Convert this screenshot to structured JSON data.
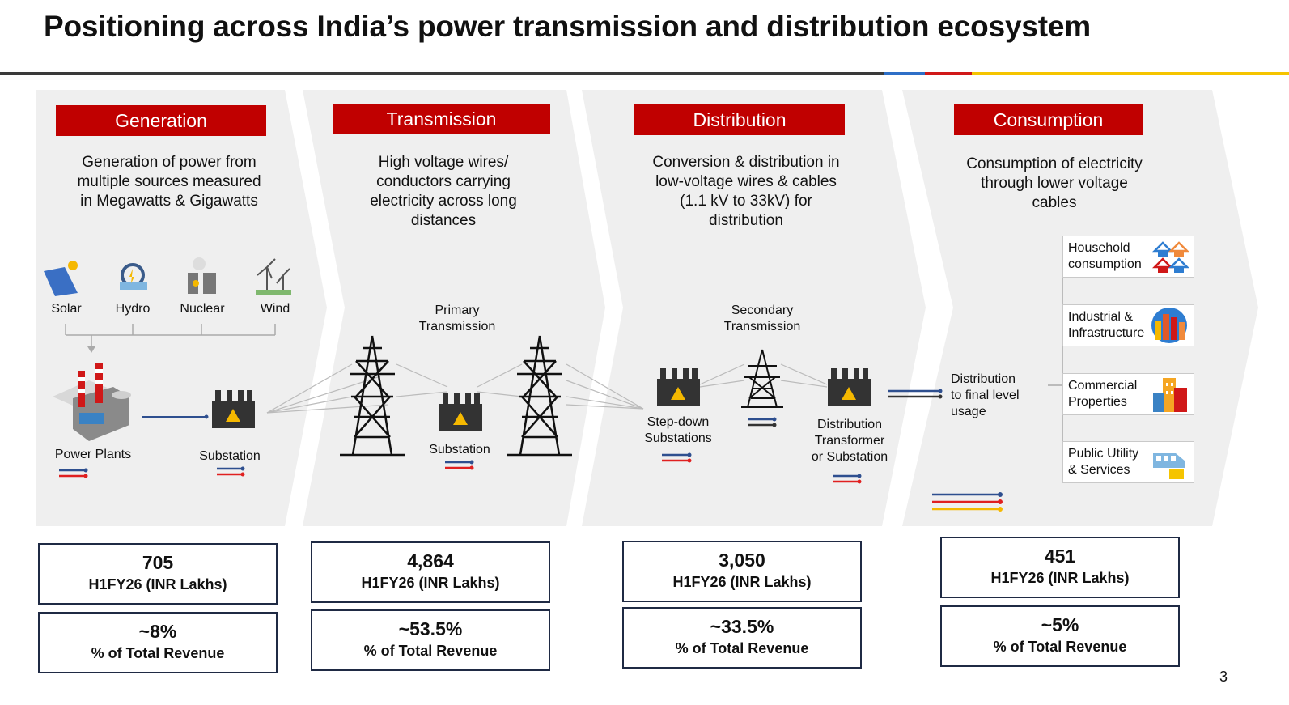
{
  "title": "Positioning across India’s power transmission and distribution ecosystem",
  "page_number": "3",
  "colors": {
    "accent_red": "#c00000",
    "line_blue": "#2e4f8f",
    "line_red": "#e02020",
    "line_yellow": "#f5b800",
    "panel_gray": "#efefef"
  },
  "stages": [
    {
      "name": "Generation",
      "description": [
        "Generation of power from",
        "multiple sources measured",
        "in Megawatts & Gigawatts"
      ],
      "sources": [
        "Solar",
        "Hydro",
        "Nuclear",
        "Wind"
      ],
      "labels": {
        "plants": "Power Plants",
        "substation": "Substation"
      },
      "revenue": "705",
      "revenue_unit": "H1FY26 (INR Lakhs)",
      "share": "~8%",
      "share_label": "% of Total Revenue"
    },
    {
      "name": "Transmission",
      "description": [
        "High voltage wires/",
        "conductors carrying",
        "electricity across long",
        "distances"
      ],
      "labels": {
        "primary": [
          "Primary",
          "Transmission"
        ],
        "substation": "Substation"
      },
      "revenue": "4,864",
      "revenue_unit": "H1FY26 (INR Lakhs)",
      "share": "~53.5%",
      "share_label": "% of Total Revenue"
    },
    {
      "name": "Distribution",
      "description": [
        "Conversion & distribution in",
        "low-voltage wires & cables",
        "(1.1 kV to 33kV) for",
        "distribution"
      ],
      "labels": {
        "secondary": [
          "Secondary",
          "Transmission"
        ],
        "stepdown": [
          "Step-down",
          "Substations"
        ],
        "transformer": [
          "Distribution",
          "Transformer",
          "or Substation"
        ]
      },
      "revenue": "3,050",
      "revenue_unit": "H1FY26 (INR Lakhs)",
      "share": "~33.5%",
      "share_label": "% of Total Revenue"
    },
    {
      "name": "Consumption",
      "description": [
        "Consumption of electricity",
        "through lower voltage",
        "cables"
      ],
      "labels": {
        "final": [
          "Distribution",
          "to final level",
          "usage"
        ]
      },
      "categories": [
        {
          "label": [
            "Household",
            "consumption"
          ],
          "icon": "houses-icon"
        },
        {
          "label": [
            "Industrial &",
            "Infrastructure"
          ],
          "icon": "city-icon"
        },
        {
          "label": [
            "Commercial",
            "Properties"
          ],
          "icon": "buildings-icon"
        },
        {
          "label": [
            "Public Utility",
            "& Services"
          ],
          "icon": "train-icon"
        }
      ],
      "revenue": "451",
      "revenue_unit": "H1FY26 (INR Lakhs)",
      "share": "~5%",
      "share_label": "% of Total Revenue"
    }
  ]
}
